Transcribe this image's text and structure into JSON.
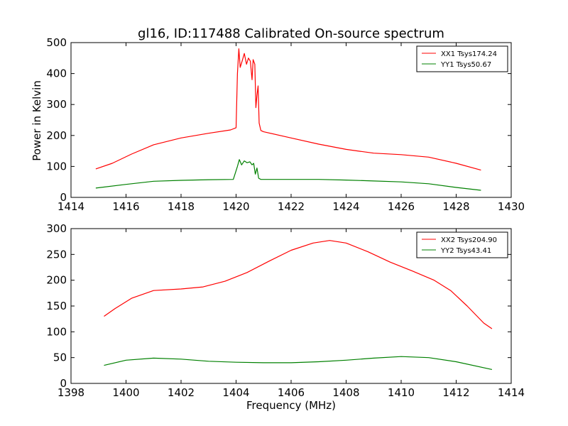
{
  "chart_data": [
    {
      "type": "line",
      "title": "gl16, ID:117488 Calibrated On-source spectrum",
      "xlabel": "",
      "ylabel": "Power in Kelvin",
      "xlim": [
        1414,
        1430
      ],
      "ylim": [
        0,
        500
      ],
      "xticks": [
        "1414",
        "1416",
        "1418",
        "1420",
        "1422",
        "1424",
        "1426",
        "1428",
        "1430"
      ],
      "yticks": [
        "0",
        "100",
        "200",
        "300",
        "400",
        "500"
      ],
      "legend_position": "top-right",
      "series": [
        {
          "name": "XX1 Tsys174.24",
          "color": "#ff0000",
          "x": [
            1414.9,
            1415.5,
            1416.2,
            1417.0,
            1418.0,
            1419.0,
            1419.8,
            1420.0,
            1420.05,
            1420.1,
            1420.15,
            1420.22,
            1420.3,
            1420.38,
            1420.45,
            1420.52,
            1420.58,
            1420.62,
            1420.68,
            1420.72,
            1420.76,
            1420.8,
            1420.84,
            1420.9,
            1421.0,
            1422.0,
            1423.0,
            1424.0,
            1425.0,
            1426.0,
            1427.0,
            1428.0,
            1428.9
          ],
          "y": [
            92,
            110,
            140,
            170,
            192,
            207,
            218,
            225,
            400,
            480,
            420,
            440,
            465,
            430,
            450,
            440,
            380,
            445,
            430,
            290,
            330,
            360,
            240,
            216,
            212,
            192,
            172,
            155,
            143,
            138,
            130,
            110,
            88
          ]
        },
        {
          "name": "YY1 Tsys50.67",
          "color": "#008000",
          "x": [
            1414.9,
            1416.0,
            1417.0,
            1418.0,
            1419.0,
            1419.9,
            1420.05,
            1420.12,
            1420.2,
            1420.3,
            1420.4,
            1420.5,
            1420.58,
            1420.64,
            1420.7,
            1420.76,
            1420.82,
            1420.9,
            1422.0,
            1423.0,
            1424.0,
            1425.0,
            1426.0,
            1427.0,
            1428.0,
            1428.9
          ],
          "y": [
            30,
            42,
            52,
            55,
            57,
            58,
            100,
            122,
            105,
            118,
            112,
            115,
            105,
            110,
            75,
            95,
            62,
            58,
            58,
            58,
            56,
            53,
            50,
            44,
            32,
            23
          ]
        }
      ]
    },
    {
      "type": "line",
      "title": "",
      "xlabel": "Frequency (MHz)",
      "ylabel": "",
      "xlim": [
        1398,
        1414
      ],
      "ylim": [
        0,
        300
      ],
      "xticks": [
        "1398",
        "1400",
        "1402",
        "1404",
        "1406",
        "1408",
        "1410",
        "1412",
        "1414"
      ],
      "yticks": [
        "0",
        "50",
        "100",
        "150",
        "200",
        "250",
        "300"
      ],
      "legend_position": "top-right",
      "series": [
        {
          "name": "XX2 Tsys204.90",
          "color": "#ff0000",
          "x": [
            1399.2,
            1399.6,
            1400.2,
            1401.0,
            1402.0,
            1402.8,
            1403.6,
            1404.4,
            1405.2,
            1406.0,
            1406.8,
            1407.4,
            1408.0,
            1408.8,
            1409.6,
            1410.4,
            1411.2,
            1411.8,
            1412.4,
            1413.0,
            1413.3
          ],
          "y": [
            130,
            145,
            165,
            180,
            183,
            187,
            198,
            215,
            237,
            258,
            272,
            277,
            272,
            255,
            235,
            218,
            200,
            180,
            150,
            117,
            106
          ]
        },
        {
          "name": "YY2 Tsys43.41",
          "color": "#008000",
          "x": [
            1399.2,
            1400.0,
            1401.0,
            1402.0,
            1403.0,
            1404.0,
            1405.0,
            1406.0,
            1407.0,
            1408.0,
            1409.0,
            1410.0,
            1411.0,
            1412.0,
            1413.3
          ],
          "y": [
            35,
            45,
            49,
            47,
            43,
            41,
            40,
            40,
            42,
            45,
            49,
            52,
            50,
            42,
            27
          ]
        }
      ]
    }
  ]
}
